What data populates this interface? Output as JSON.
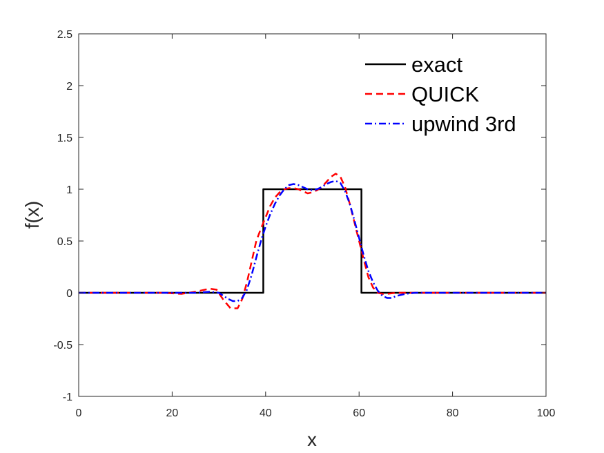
{
  "chart_data": {
    "type": "line",
    "title": "",
    "xlabel": "x",
    "ylabel": "f(x)",
    "xlim": [
      0,
      100
    ],
    "ylim": [
      -1,
      2.5
    ],
    "xticks": [
      "0",
      "20",
      "40",
      "60",
      "80",
      "100"
    ],
    "yticks": [
      "-1",
      "-0.5",
      "0",
      "0.5",
      "1",
      "1.5",
      "2",
      "2.5"
    ],
    "grid": false,
    "legend_position": "top-right",
    "series": [
      {
        "name": "exact",
        "color": "#000000",
        "style": "solid",
        "x": [
          0,
          39.5,
          39.5,
          60.5,
          60.5,
          100
        ],
        "y": [
          0,
          0,
          1,
          1,
          0,
          0
        ]
      },
      {
        "name": "QUICK",
        "color": "#ff0000",
        "style": "dashed",
        "x": [
          0,
          18,
          22,
          25,
          28,
          29.5,
          31,
          32.5,
          34,
          35,
          36,
          37,
          38,
          39,
          40,
          41,
          42,
          43,
          44,
          45,
          46,
          47,
          48,
          49,
          50,
          51,
          52,
          53,
          54,
          55,
          56,
          57,
          58,
          59,
          60,
          61,
          62,
          63,
          64,
          65,
          66,
          68,
          70,
          75,
          100
        ],
        "y": [
          0,
          0,
          -0.01,
          0.01,
          0.04,
          0.03,
          -0.07,
          -0.15,
          -0.15,
          -0.06,
          0.1,
          0.3,
          0.5,
          0.62,
          0.73,
          0.84,
          0.92,
          0.97,
          1.0,
          1.01,
          1.01,
          1.0,
          0.98,
          0.96,
          0.97,
          0.99,
          1.02,
          1.07,
          1.12,
          1.15,
          1.12,
          1.02,
          0.86,
          0.68,
          0.5,
          0.32,
          0.15,
          0.05,
          0.0,
          -0.01,
          -0.01,
          0.0,
          0.0,
          0.0,
          0.0
        ]
      },
      {
        "name": "upwind 3rd",
        "color": "#0000ff",
        "style": "dashdot",
        "x": [
          0,
          25,
          28,
          30,
          31,
          32,
          33,
          34,
          35,
          36,
          37,
          38,
          39,
          40,
          41,
          42,
          43,
          44,
          45,
          46,
          47,
          48,
          49,
          50,
          51,
          52,
          53,
          54,
          55,
          56,
          57,
          58,
          59,
          60,
          61,
          62,
          63,
          64,
          65,
          66,
          67,
          68,
          70,
          72,
          75,
          100
        ],
        "y": [
          0,
          0,
          0.01,
          0.0,
          -0.03,
          -0.06,
          -0.08,
          -0.08,
          -0.05,
          0.03,
          0.17,
          0.34,
          0.5,
          0.64,
          0.76,
          0.86,
          0.94,
          1.0,
          1.04,
          1.05,
          1.04,
          1.02,
          1.0,
          0.99,
          1.0,
          1.02,
          1.05,
          1.07,
          1.08,
          1.06,
          0.98,
          0.86,
          0.7,
          0.53,
          0.36,
          0.21,
          0.1,
          0.02,
          -0.03,
          -0.05,
          -0.05,
          -0.03,
          -0.01,
          0.0,
          0.0,
          0.0
        ]
      }
    ]
  }
}
